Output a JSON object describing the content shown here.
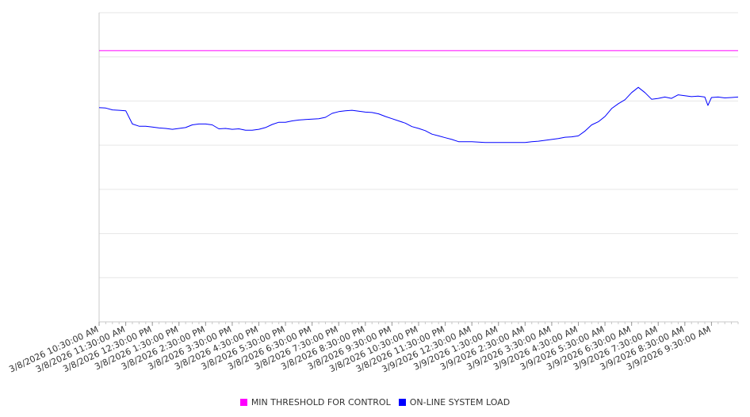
{
  "chart_data": {
    "type": "line",
    "x_type": "datetime",
    "x_range": [
      "3/8/2026 10:30:00 AM",
      "3/9/2026 10:30:00 AM"
    ],
    "ylim": [
      0,
      7
    ],
    "y_ticks": [
      0,
      1,
      2,
      3,
      4,
      5,
      6,
      7
    ],
    "y_tick_labels_visible": false,
    "grid": {
      "horizontal": true,
      "vertical": false
    },
    "legend": "bottom-center",
    "x_tick_labels": [
      "3/8/2026 10:30:00 AM",
      "3/8/2026 11:30:00 AM",
      "3/8/2026 12:30:00 PM",
      "3/8/2026 1:30:00 PM",
      "3/8/2026 2:30:00 PM",
      "3/8/2026 3:30:00 PM",
      "3/8/2026 4:30:00 PM",
      "3/8/2026 5:30:00 PM",
      "3/8/2026 6:30:00 PM",
      "3/8/2026 7:30:00 PM",
      "3/8/2026 8:30:00 PM",
      "3/8/2026 9:30:00 PM",
      "3/8/2026 10:30:00 PM",
      "3/8/2026 11:30:00 PM",
      "3/9/2026 12:30:00 AM",
      "3/9/2026 1:30:00 AM",
      "3/9/2026 2:30:00 AM",
      "3/9/2026 3:30:00 AM",
      "3/9/2026 4:30:00 AM",
      "3/9/2026 5:30:00 AM",
      "3/9/2026 6:30:00 AM",
      "3/9/2026 7:30:00 AM",
      "3/9/2026 8:30:00 AM",
      "3/9/2026 9:30:00 AM"
    ],
    "series": [
      {
        "name": "MIN THRESHOLD FOR CONTROL",
        "color": "#ff00ff",
        "points": [
          [
            "3/8/2026 10:30:00 AM",
            6.14
          ],
          [
            "3/9/2026 10:30:00 AM",
            6.14
          ]
        ]
      },
      {
        "name": "ON-LINE SYSTEM LOAD",
        "color": "#0000ff",
        "points": [
          [
            "3/8/2026 10:30:00 AM",
            4.85
          ],
          [
            "3/8/2026 10:45:00 AM",
            4.84
          ],
          [
            "3/8/2026 11:00:00 AM",
            4.8
          ],
          [
            "3/8/2026 11:15:00 AM",
            4.79
          ],
          [
            "3/8/2026 11:30:00 AM",
            4.78
          ],
          [
            "3/8/2026 11:45:00 AM",
            4.48
          ],
          [
            "3/8/2026 12:00:00 PM",
            4.43
          ],
          [
            "3/8/2026 12:15:00 PM",
            4.43
          ],
          [
            "3/8/2026 12:30:00 PM",
            4.41
          ],
          [
            "3/8/2026 12:45:00 PM",
            4.39
          ],
          [
            "3/8/2026 1:00:00 PM",
            4.38
          ],
          [
            "3/8/2026 1:15:00 PM",
            4.36
          ],
          [
            "3/8/2026 1:30:00 PM",
            4.38
          ],
          [
            "3/8/2026 1:45:00 PM",
            4.4
          ],
          [
            "3/8/2026 2:00:00 PM",
            4.46
          ],
          [
            "3/8/2026 2:15:00 PM",
            4.48
          ],
          [
            "3/8/2026 2:30:00 PM",
            4.48
          ],
          [
            "3/8/2026 2:45:00 PM",
            4.46
          ],
          [
            "3/8/2026 3:00:00 PM",
            4.37
          ],
          [
            "3/8/2026 3:15:00 PM",
            4.38
          ],
          [
            "3/8/2026 3:30:00 PM",
            4.36
          ],
          [
            "3/8/2026 3:45:00 PM",
            4.37
          ],
          [
            "3/8/2026 4:00:00 PM",
            4.34
          ],
          [
            "3/8/2026 4:15:00 PM",
            4.34
          ],
          [
            "3/8/2026 4:30:00 PM",
            4.36
          ],
          [
            "3/8/2026 4:45:00 PM",
            4.4
          ],
          [
            "3/8/2026 5:00:00 PM",
            4.47
          ],
          [
            "3/8/2026 5:15:00 PM",
            4.52
          ],
          [
            "3/8/2026 5:30:00 PM",
            4.52
          ],
          [
            "3/8/2026 5:45:00 PM",
            4.55
          ],
          [
            "3/8/2026 6:00:00 PM",
            4.57
          ],
          [
            "3/8/2026 6:15:00 PM",
            4.58
          ],
          [
            "3/8/2026 6:30:00 PM",
            4.59
          ],
          [
            "3/8/2026 6:45:00 PM",
            4.6
          ],
          [
            "3/8/2026 7:00:00 PM",
            4.63
          ],
          [
            "3/8/2026 7:15:00 PM",
            4.72
          ],
          [
            "3/8/2026 7:30:00 PM",
            4.76
          ],
          [
            "3/8/2026 7:45:00 PM",
            4.78
          ],
          [
            "3/8/2026 8:00:00 PM",
            4.79
          ],
          [
            "3/8/2026 8:15:00 PM",
            4.77
          ],
          [
            "3/8/2026 8:30:00 PM",
            4.75
          ],
          [
            "3/8/2026 8:45:00 PM",
            4.74
          ],
          [
            "3/8/2026 9:00:00 PM",
            4.71
          ],
          [
            "3/8/2026 9:15:00 PM",
            4.65
          ],
          [
            "3/8/2026 9:30:00 PM",
            4.6
          ],
          [
            "3/8/2026 9:45:00 PM",
            4.55
          ],
          [
            "3/8/2026 10:00:00 PM",
            4.5
          ],
          [
            "3/8/2026 10:15:00 PM",
            4.42
          ],
          [
            "3/8/2026 10:30:00 PM",
            4.38
          ],
          [
            "3/8/2026 10:45:00 PM",
            4.33
          ],
          [
            "3/8/2026 11:00:00 PM",
            4.25
          ],
          [
            "3/8/2026 11:15:00 PM",
            4.21
          ],
          [
            "3/8/2026 11:30:00 PM",
            4.17
          ],
          [
            "3/8/2026 11:45:00 PM",
            4.13
          ],
          [
            "3/9/2026 12:00:00 AM",
            4.08
          ],
          [
            "3/9/2026 12:15:00 AM",
            4.08
          ],
          [
            "3/9/2026 12:30:00 AM",
            4.08
          ],
          [
            "3/9/2026 12:45:00 AM",
            4.07
          ],
          [
            "3/9/2026 1:00:00 AM",
            4.06
          ],
          [
            "3/9/2026 1:15:00 AM",
            4.06
          ],
          [
            "3/9/2026 1:30:00 AM",
            4.06
          ],
          [
            "3/9/2026 1:45:00 AM",
            4.06
          ],
          [
            "3/9/2026 2:00:00 AM",
            4.06
          ],
          [
            "3/9/2026 2:15:00 AM",
            4.06
          ],
          [
            "3/9/2026 2:30:00 AM",
            4.06
          ],
          [
            "3/9/2026 2:45:00 AM",
            4.08
          ],
          [
            "3/9/2026 3:00:00 AM",
            4.09
          ],
          [
            "3/9/2026 3:15:00 AM",
            4.11
          ],
          [
            "3/9/2026 3:30:00 AM",
            4.13
          ],
          [
            "3/9/2026 3:45:00 AM",
            4.15
          ],
          [
            "3/9/2026 4:00:00 AM",
            4.18
          ],
          [
            "3/9/2026 4:15:00 AM",
            4.19
          ],
          [
            "3/9/2026 4:30:00 AM",
            4.21
          ],
          [
            "3/9/2026 4:45:00 AM",
            4.32
          ],
          [
            "3/9/2026 5:00:00 AM",
            4.46
          ],
          [
            "3/9/2026 5:15:00 AM",
            4.53
          ],
          [
            "3/9/2026 5:30:00 AM",
            4.65
          ],
          [
            "3/9/2026 5:45:00 AM",
            4.83
          ],
          [
            "3/9/2026 6:00:00 AM",
            4.94
          ],
          [
            "3/9/2026 6:15:00 AM",
            5.03
          ],
          [
            "3/9/2026 6:30:00 AM",
            5.19
          ],
          [
            "3/9/2026 6:45:00 AM",
            5.31
          ],
          [
            "3/9/2026 7:00:00 AM",
            5.19
          ],
          [
            "3/9/2026 7:15:00 AM",
            5.04
          ],
          [
            "3/9/2026 7:30:00 AM",
            5.06
          ],
          [
            "3/9/2026 7:45:00 AM",
            5.09
          ],
          [
            "3/9/2026 8:00:00 AM",
            5.06
          ],
          [
            "3/9/2026 8:15:00 AM",
            5.14
          ],
          [
            "3/9/2026 8:30:00 AM",
            5.12
          ],
          [
            "3/9/2026 8:45:00 AM",
            5.1
          ],
          [
            "3/9/2026 9:00:00 AM",
            5.11
          ],
          [
            "3/9/2026 9:15:00 AM",
            5.09
          ],
          [
            "3/9/2026 9:22:00 AM",
            4.9
          ],
          [
            "3/9/2026 9:30:00 AM",
            5.08
          ],
          [
            "3/9/2026 9:45:00 AM",
            5.09
          ],
          [
            "3/9/2026 10:00:00 AM",
            5.07
          ],
          [
            "3/9/2026 10:15:00 AM",
            5.08
          ],
          [
            "3/9/2026 10:30:00 AM",
            5.09
          ]
        ]
      }
    ]
  }
}
